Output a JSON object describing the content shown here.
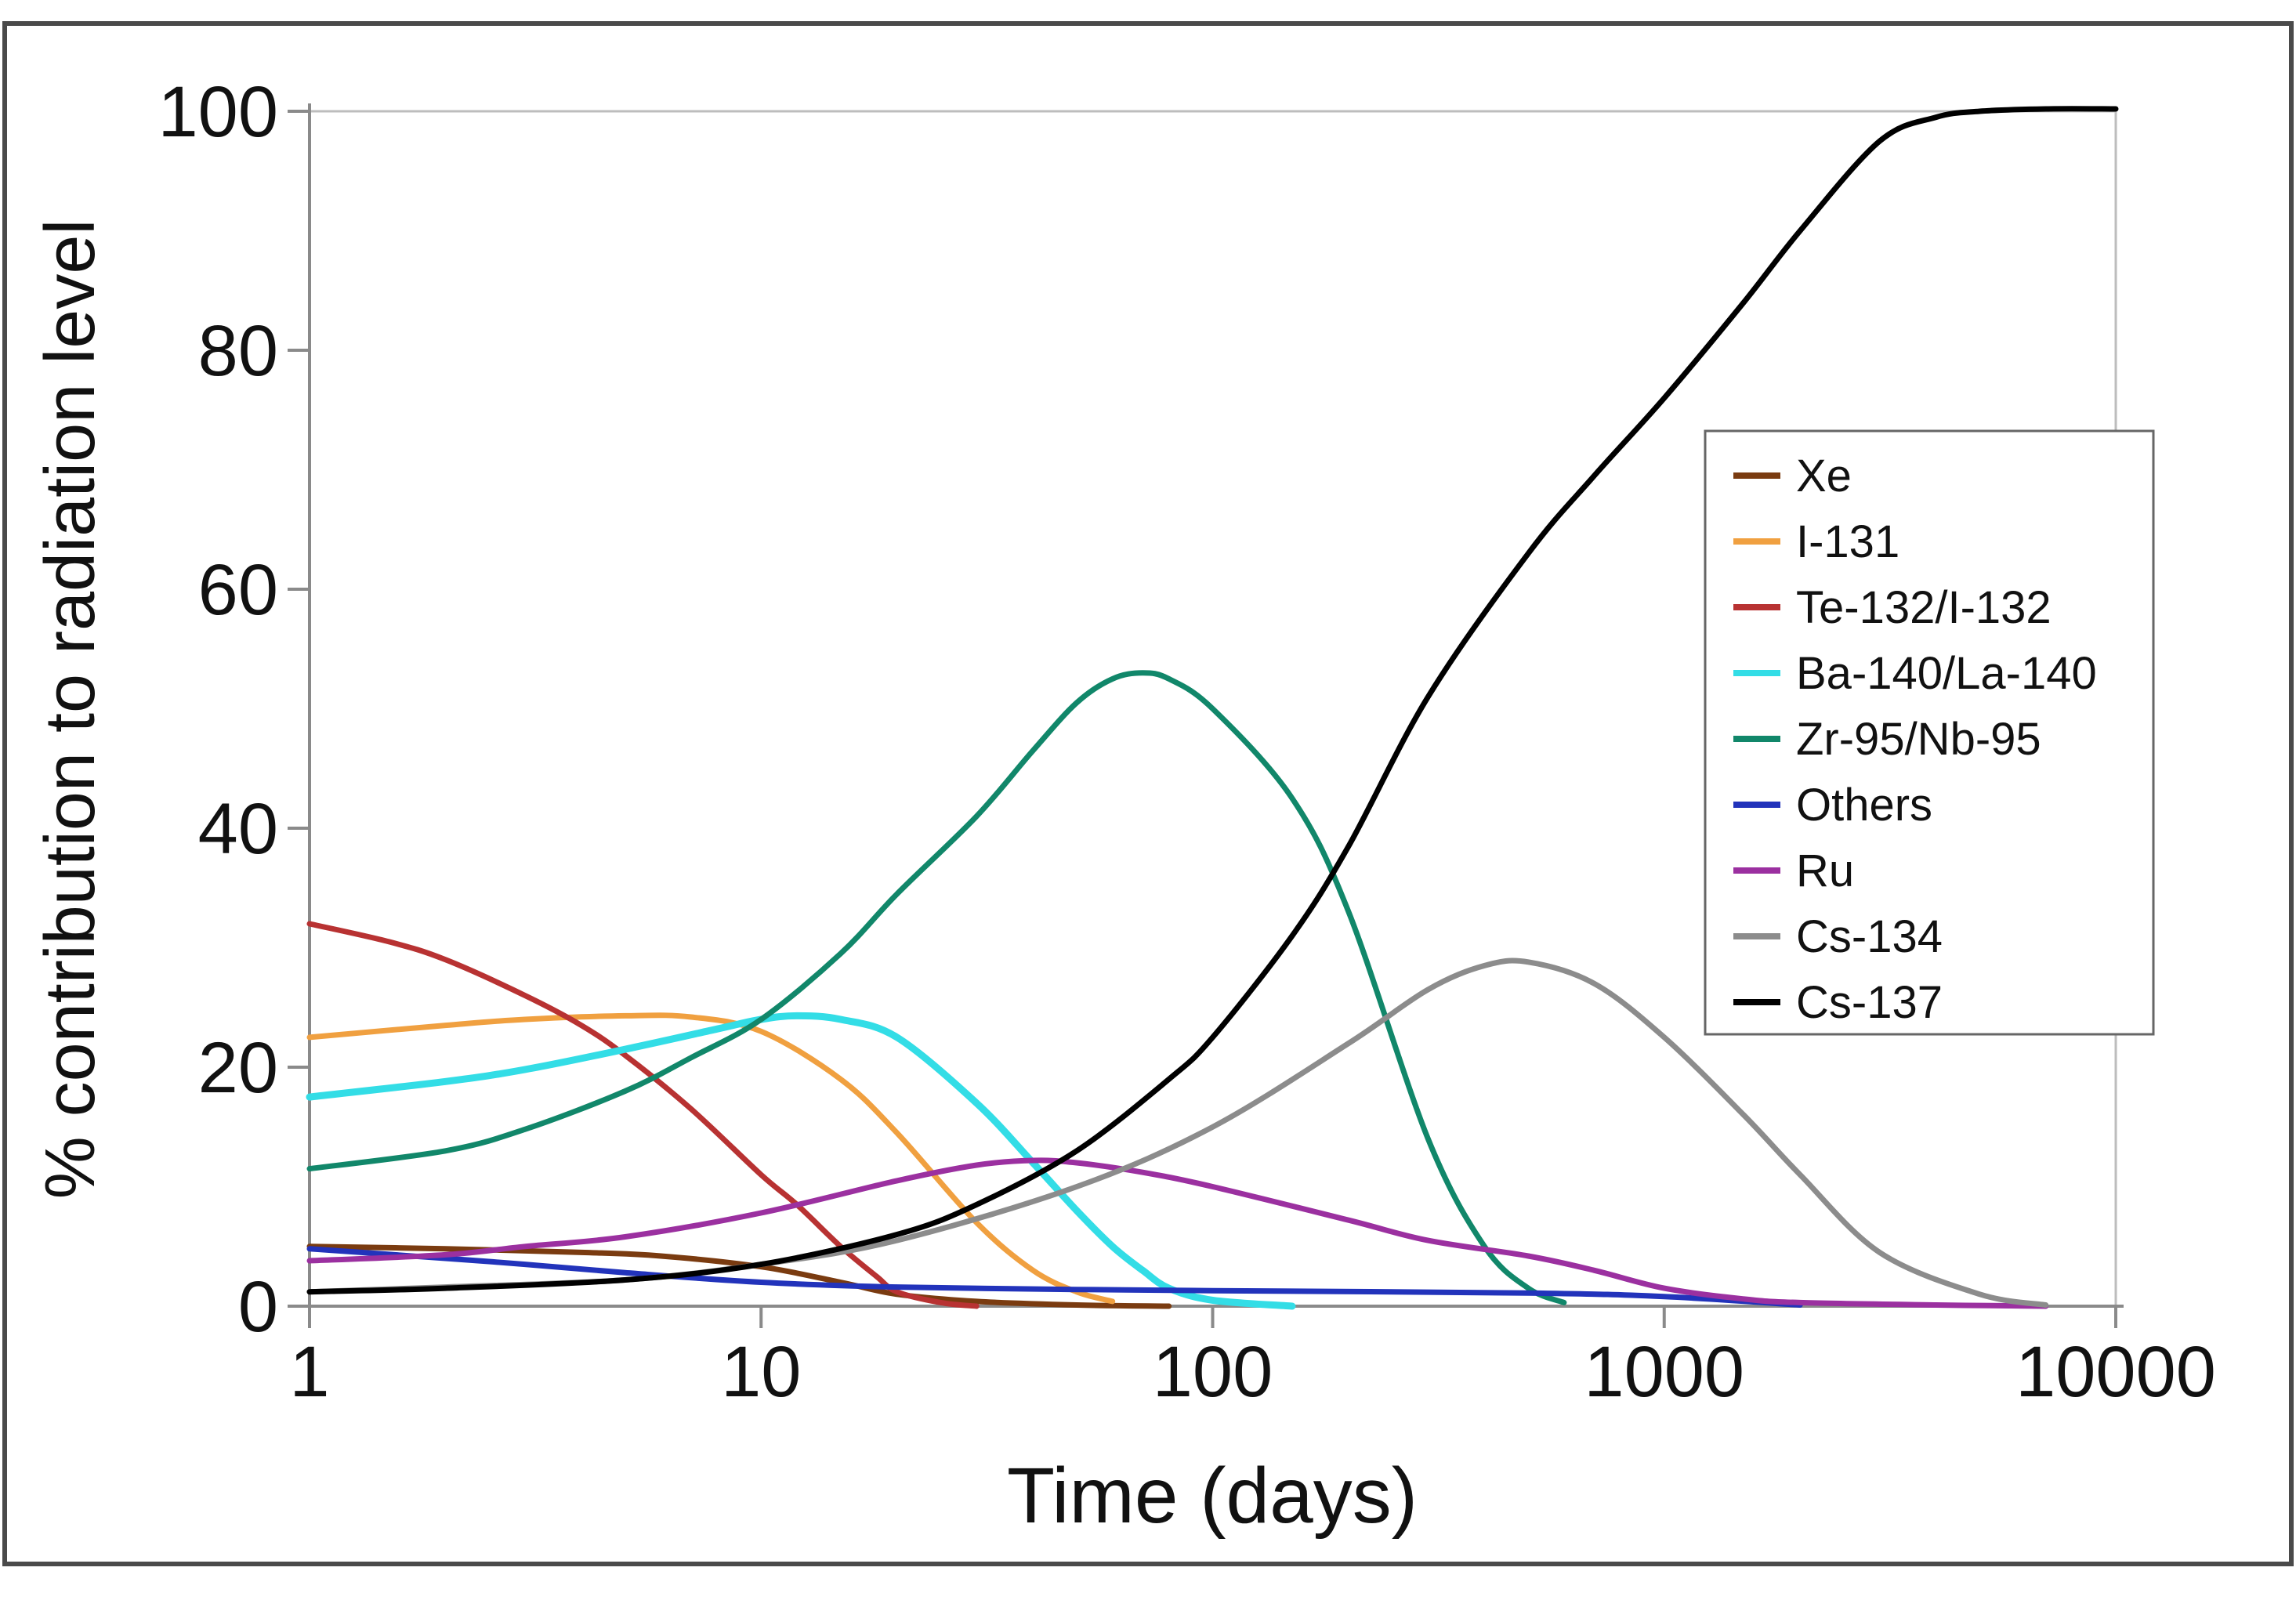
{
  "chart_data": {
    "type": "line",
    "title": "",
    "xlabel": "Time (days)",
    "ylabel": "% contribution to radiation level",
    "xscale": "log",
    "xlim": [
      1,
      10000
    ],
    "ylim": [
      0,
      100
    ],
    "xticks": [
      1,
      10,
      100,
      1000,
      10000
    ],
    "xtick_labels": [
      "1",
      "10",
      "100",
      "1000",
      "10000"
    ],
    "yticks": [
      0,
      20,
      40,
      60,
      80,
      100
    ],
    "ytick_labels": [
      "0",
      "20",
      "40",
      "60",
      "80",
      "100"
    ],
    "legend_position": "right",
    "grid": false,
    "series": [
      {
        "name": "Xe",
        "color": "#7a3b10",
        "x": [
          1,
          2,
          4,
          6,
          10,
          15,
          20,
          30,
          50,
          80
        ],
        "y": [
          5,
          4.8,
          4.5,
          4.2,
          3.3,
          2.0,
          1.0,
          0.4,
          0.1,
          0
        ]
      },
      {
        "name": "I-131",
        "color": "#f0a040",
        "x": [
          1,
          2,
          3,
          5,
          7,
          10,
          15,
          20,
          30,
          40,
          50,
          60
        ],
        "y": [
          22.5,
          23.5,
          24.0,
          24.3,
          24.2,
          23.0,
          19.0,
          14.5,
          7.0,
          3.0,
          1.2,
          0.4
        ]
      },
      {
        "name": "Te-132/I-132",
        "color": "#b83232",
        "x": [
          1,
          1.5,
          2,
          3,
          4,
          5,
          7,
          10,
          12,
          15,
          18,
          20,
          25,
          30
        ],
        "y": [
          32,
          30.5,
          29,
          26,
          23.5,
          21,
          16.5,
          11,
          8.5,
          5,
          2.5,
          1.2,
          0.3,
          0
        ]
      },
      {
        "name": "Ba-140/La-140",
        "color": "#33dde6",
        "x": [
          1,
          2,
          3,
          5,
          8,
          10,
          12,
          15,
          20,
          30,
          40,
          50,
          60,
          70,
          80,
          100,
          150
        ],
        "y": [
          17.5,
          18.8,
          19.8,
          21.5,
          23.2,
          24.0,
          24.3,
          24.0,
          22.5,
          17.0,
          12.0,
          8.0,
          5.0,
          3.0,
          1.5,
          0.5,
          0
        ]
      },
      {
        "name": "Zr-95/Nb-95",
        "color": "#11876a",
        "x": [
          1,
          2,
          3,
          5,
          7,
          10,
          15,
          20,
          30,
          40,
          50,
          60,
          70,
          80,
          100,
          150,
          200,
          300,
          400,
          500,
          600
        ],
        "y": [
          11.5,
          13.0,
          14.8,
          18.0,
          20.8,
          24.0,
          29.5,
          34.5,
          41.0,
          46.5,
          50.5,
          52.5,
          53.0,
          52.5,
          50.0,
          42.5,
          33.0,
          14.0,
          5.0,
          1.5,
          0.3
        ]
      },
      {
        "name": "Others",
        "color": "#2233bb",
        "x": [
          1,
          2,
          3,
          5,
          10,
          20,
          50,
          100,
          500,
          1000,
          2000
        ],
        "y": [
          4.8,
          4.0,
          3.5,
          2.8,
          2.0,
          1.6,
          1.4,
          1.3,
          1.1,
          0.8,
          0.1
        ]
      },
      {
        "name": "Ru",
        "color": "#9b30a0",
        "x": [
          1,
          2,
          3,
          5,
          10,
          20,
          30,
          40,
          50,
          70,
          100,
          200,
          300,
          500,
          700,
          1000,
          1500,
          2000,
          4000,
          7000
        ],
        "y": [
          3.8,
          4.3,
          5.0,
          5.8,
          7.8,
          10.5,
          11.8,
          12.2,
          12.0,
          11.2,
          10.0,
          7.2,
          5.5,
          4.2,
          3.0,
          1.5,
          0.6,
          0.3,
          0.1,
          0
        ]
      },
      {
        "name": "Cs-134",
        "color": "#8c8c8c",
        "x": [
          1,
          2,
          5,
          10,
          20,
          50,
          100,
          200,
          300,
          400,
          500,
          700,
          1000,
          1500,
          2000,
          3000,
          5000,
          7000
        ],
        "y": [
          1.2,
          1.6,
          2.2,
          3.5,
          5.5,
          10.0,
          15.0,
          22.0,
          26.5,
          28.5,
          28.8,
          27.0,
          22.5,
          16.0,
          11.0,
          4.5,
          1.0,
          0.1
        ]
      },
      {
        "name": "Cs-137",
        "color": "#000000",
        "x": [
          1,
          2,
          5,
          10,
          20,
          30,
          50,
          80,
          100,
          150,
          200,
          300,
          500,
          700,
          1000,
          1500,
          2000,
          3000,
          4000,
          5000,
          7000,
          10000
        ],
        "y": [
          1.2,
          1.5,
          2.2,
          3.5,
          6.0,
          8.5,
          13.0,
          19.0,
          22.5,
          31.0,
          38.5,
          51.0,
          63.0,
          69.5,
          76.0,
          84.0,
          90.0,
          97.5,
          99.5,
          100.0,
          100.2,
          100.2
        ]
      }
    ]
  }
}
